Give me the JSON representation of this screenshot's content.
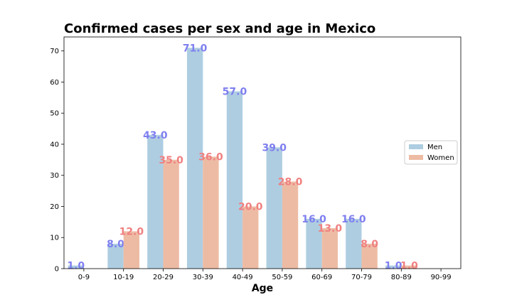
{
  "chart_data": {
    "type": "bar",
    "title": "Confirmed cases per sex and age in Mexico",
    "xlabel": "Age",
    "ylabel": "",
    "categories": [
      "0-9",
      "10-19",
      "20-29",
      "30-39",
      "40-49",
      "50-59",
      "60-69",
      "70-79",
      "80-89",
      "90-99"
    ],
    "series": [
      {
        "name": "Men",
        "values": [
          1,
          8,
          43,
          71,
          57,
          39,
          16,
          16,
          1,
          0
        ],
        "color": "#aecde1",
        "label_color": "#7f7ff0"
      },
      {
        "name": "Women",
        "values": [
          0,
          12,
          35,
          36,
          20,
          28,
          13,
          8,
          1,
          0
        ],
        "color": "#edbba4",
        "label_color": "#f08080"
      }
    ],
    "ylim": [
      0,
      74.5
    ],
    "yticks": [
      0,
      10,
      20,
      30,
      40,
      50,
      60,
      70
    ],
    "grid": false,
    "legend_position": "center-right",
    "data_label_format": "one-decimal"
  }
}
